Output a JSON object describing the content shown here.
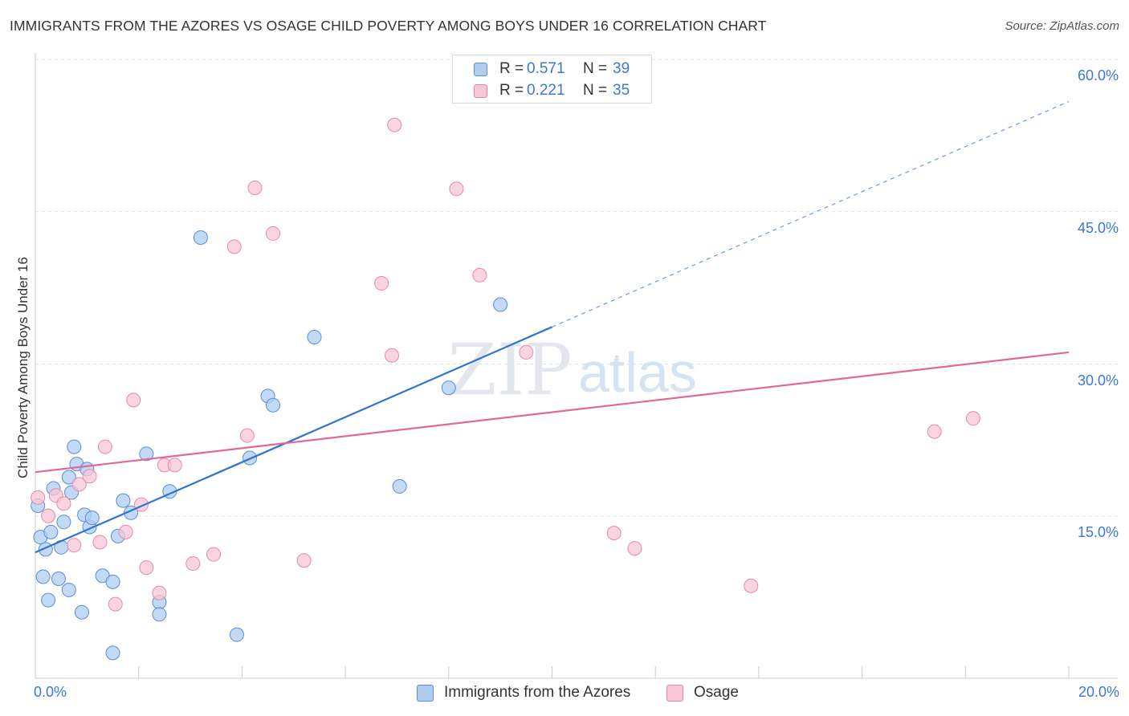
{
  "title": "IMMIGRANTS FROM THE AZORES VS OSAGE CHILD POVERTY AMONG BOYS UNDER 16 CORRELATION CHART",
  "source": "Source: ZipAtlas.com",
  "watermark": {
    "zip": "ZIP",
    "atlas": "atlas"
  },
  "legend": {
    "r_label": "R =",
    "n_label": "N =",
    "azores": {
      "r": "0.571",
      "n": "39"
    },
    "osage": {
      "r": "0.221",
      "n": "35"
    }
  },
  "colors": {
    "azores_fill": "#aecdf1",
    "azores_stroke": "#5b8fd0",
    "azores_line": "#2f74d0",
    "osage_fill": "#f8c6d6",
    "osage_stroke": "#e58aa8",
    "osage_line": "#e0689a",
    "grid": "#dde2ea",
    "tick_text": "#3a78d6"
  },
  "chart_data": {
    "type": "scatter",
    "title": "IMMIGRANTS FROM THE AZORES VS OSAGE CHILD POVERTY AMONG BOYS UNDER 16 CORRELATION CHART",
    "xlabel": "",
    "ylabel": "Child Poverty Among Boys Under 16",
    "xlim": [
      0,
      20
    ],
    "ylim": [
      0,
      60
    ],
    "x_tick_labels": [
      {
        "value": 0,
        "label": "0.0%"
      },
      {
        "value": 20,
        "label": "20.0%"
      }
    ],
    "y_tick_labels": [
      {
        "value": 15,
        "label": "15.0%"
      },
      {
        "value": 30,
        "label": "30.0%"
      },
      {
        "value": 45,
        "label": "45.0%"
      },
      {
        "value": 60,
        "label": "60.0%"
      }
    ],
    "series": [
      {
        "name": "Immigrants from the Azores",
        "r": 0.571,
        "n": 39,
        "trend": {
          "x0": 0,
          "y0": 12.4,
          "x1": 10,
          "y1": 34.6,
          "dash_x1": 20,
          "dash_y1": 56.8
        },
        "points": [
          {
            "x": 0.05,
            "y": 17.0
          },
          {
            "x": 0.1,
            "y": 13.9
          },
          {
            "x": 0.15,
            "y": 10.0
          },
          {
            "x": 0.2,
            "y": 12.7
          },
          {
            "x": 0.25,
            "y": 7.7
          },
          {
            "x": 0.3,
            "y": 14.4
          },
          {
            "x": 0.35,
            "y": 18.7
          },
          {
            "x": 0.45,
            "y": 9.8
          },
          {
            "x": 0.5,
            "y": 12.9
          },
          {
            "x": 0.55,
            "y": 15.4
          },
          {
            "x": 0.65,
            "y": 8.7
          },
          {
            "x": 0.65,
            "y": 19.8
          },
          {
            "x": 0.7,
            "y": 18.3
          },
          {
            "x": 0.75,
            "y": 22.8
          },
          {
            "x": 0.8,
            "y": 21.1
          },
          {
            "x": 0.9,
            "y": 6.5
          },
          {
            "x": 0.95,
            "y": 16.1
          },
          {
            "x": 1.0,
            "y": 20.6
          },
          {
            "x": 1.05,
            "y": 14.9
          },
          {
            "x": 1.1,
            "y": 15.8
          },
          {
            "x": 1.3,
            "y": 10.1
          },
          {
            "x": 1.5,
            "y": 9.5
          },
          {
            "x": 1.5,
            "y": 2.5
          },
          {
            "x": 1.6,
            "y": 14.0
          },
          {
            "x": 1.7,
            "y": 17.5
          },
          {
            "x": 1.85,
            "y": 16.3
          },
          {
            "x": 2.15,
            "y": 22.1
          },
          {
            "x": 2.4,
            "y": 7.5
          },
          {
            "x": 2.4,
            "y": 6.3
          },
          {
            "x": 2.6,
            "y": 18.4
          },
          {
            "x": 3.2,
            "y": 43.4
          },
          {
            "x": 3.9,
            "y": 4.3
          },
          {
            "x": 4.15,
            "y": 21.7
          },
          {
            "x": 4.5,
            "y": 27.8
          },
          {
            "x": 4.6,
            "y": 26.9
          },
          {
            "x": 5.4,
            "y": 33.6
          },
          {
            "x": 7.05,
            "y": 18.9
          },
          {
            "x": 8.0,
            "y": 28.6
          },
          {
            "x": 9.0,
            "y": 36.8
          }
        ]
      },
      {
        "name": "Osage",
        "r": 0.221,
        "n": 35,
        "trend": {
          "x0": 0,
          "y0": 20.3,
          "x1": 20,
          "y1": 32.1
        },
        "points": [
          {
            "x": 0.05,
            "y": 17.8
          },
          {
            "x": 0.25,
            "y": 16.0
          },
          {
            "x": 0.4,
            "y": 18.0
          },
          {
            "x": 0.55,
            "y": 17.2
          },
          {
            "x": 0.75,
            "y": 13.1
          },
          {
            "x": 0.85,
            "y": 19.1
          },
          {
            "x": 1.05,
            "y": 19.9
          },
          {
            "x": 1.25,
            "y": 13.4
          },
          {
            "x": 1.35,
            "y": 22.8
          },
          {
            "x": 1.55,
            "y": 7.3
          },
          {
            "x": 1.75,
            "y": 14.4
          },
          {
            "x": 1.9,
            "y": 27.4
          },
          {
            "x": 2.05,
            "y": 17.1
          },
          {
            "x": 2.15,
            "y": 10.9
          },
          {
            "x": 2.4,
            "y": 8.4
          },
          {
            "x": 2.5,
            "y": 21.0
          },
          {
            "x": 2.7,
            "y": 21.0
          },
          {
            "x": 3.05,
            "y": 11.3
          },
          {
            "x": 3.45,
            "y": 12.2
          },
          {
            "x": 3.85,
            "y": 42.5
          },
          {
            "x": 4.1,
            "y": 23.9
          },
          {
            "x": 4.25,
            "y": 48.3
          },
          {
            "x": 4.6,
            "y": 43.8
          },
          {
            "x": 5.2,
            "y": 11.6
          },
          {
            "x": 6.7,
            "y": 38.9
          },
          {
            "x": 6.9,
            "y": 31.8
          },
          {
            "x": 6.95,
            "y": 54.5
          },
          {
            "x": 8.15,
            "y": 48.2
          },
          {
            "x": 8.6,
            "y": 39.7
          },
          {
            "x": 9.5,
            "y": 32.1
          },
          {
            "x": 11.2,
            "y": 14.3
          },
          {
            "x": 11.6,
            "y": 12.8
          },
          {
            "x": 13.85,
            "y": 9.1
          },
          {
            "x": 17.4,
            "y": 24.3
          },
          {
            "x": 18.15,
            "y": 25.6
          }
        ]
      }
    ]
  }
}
